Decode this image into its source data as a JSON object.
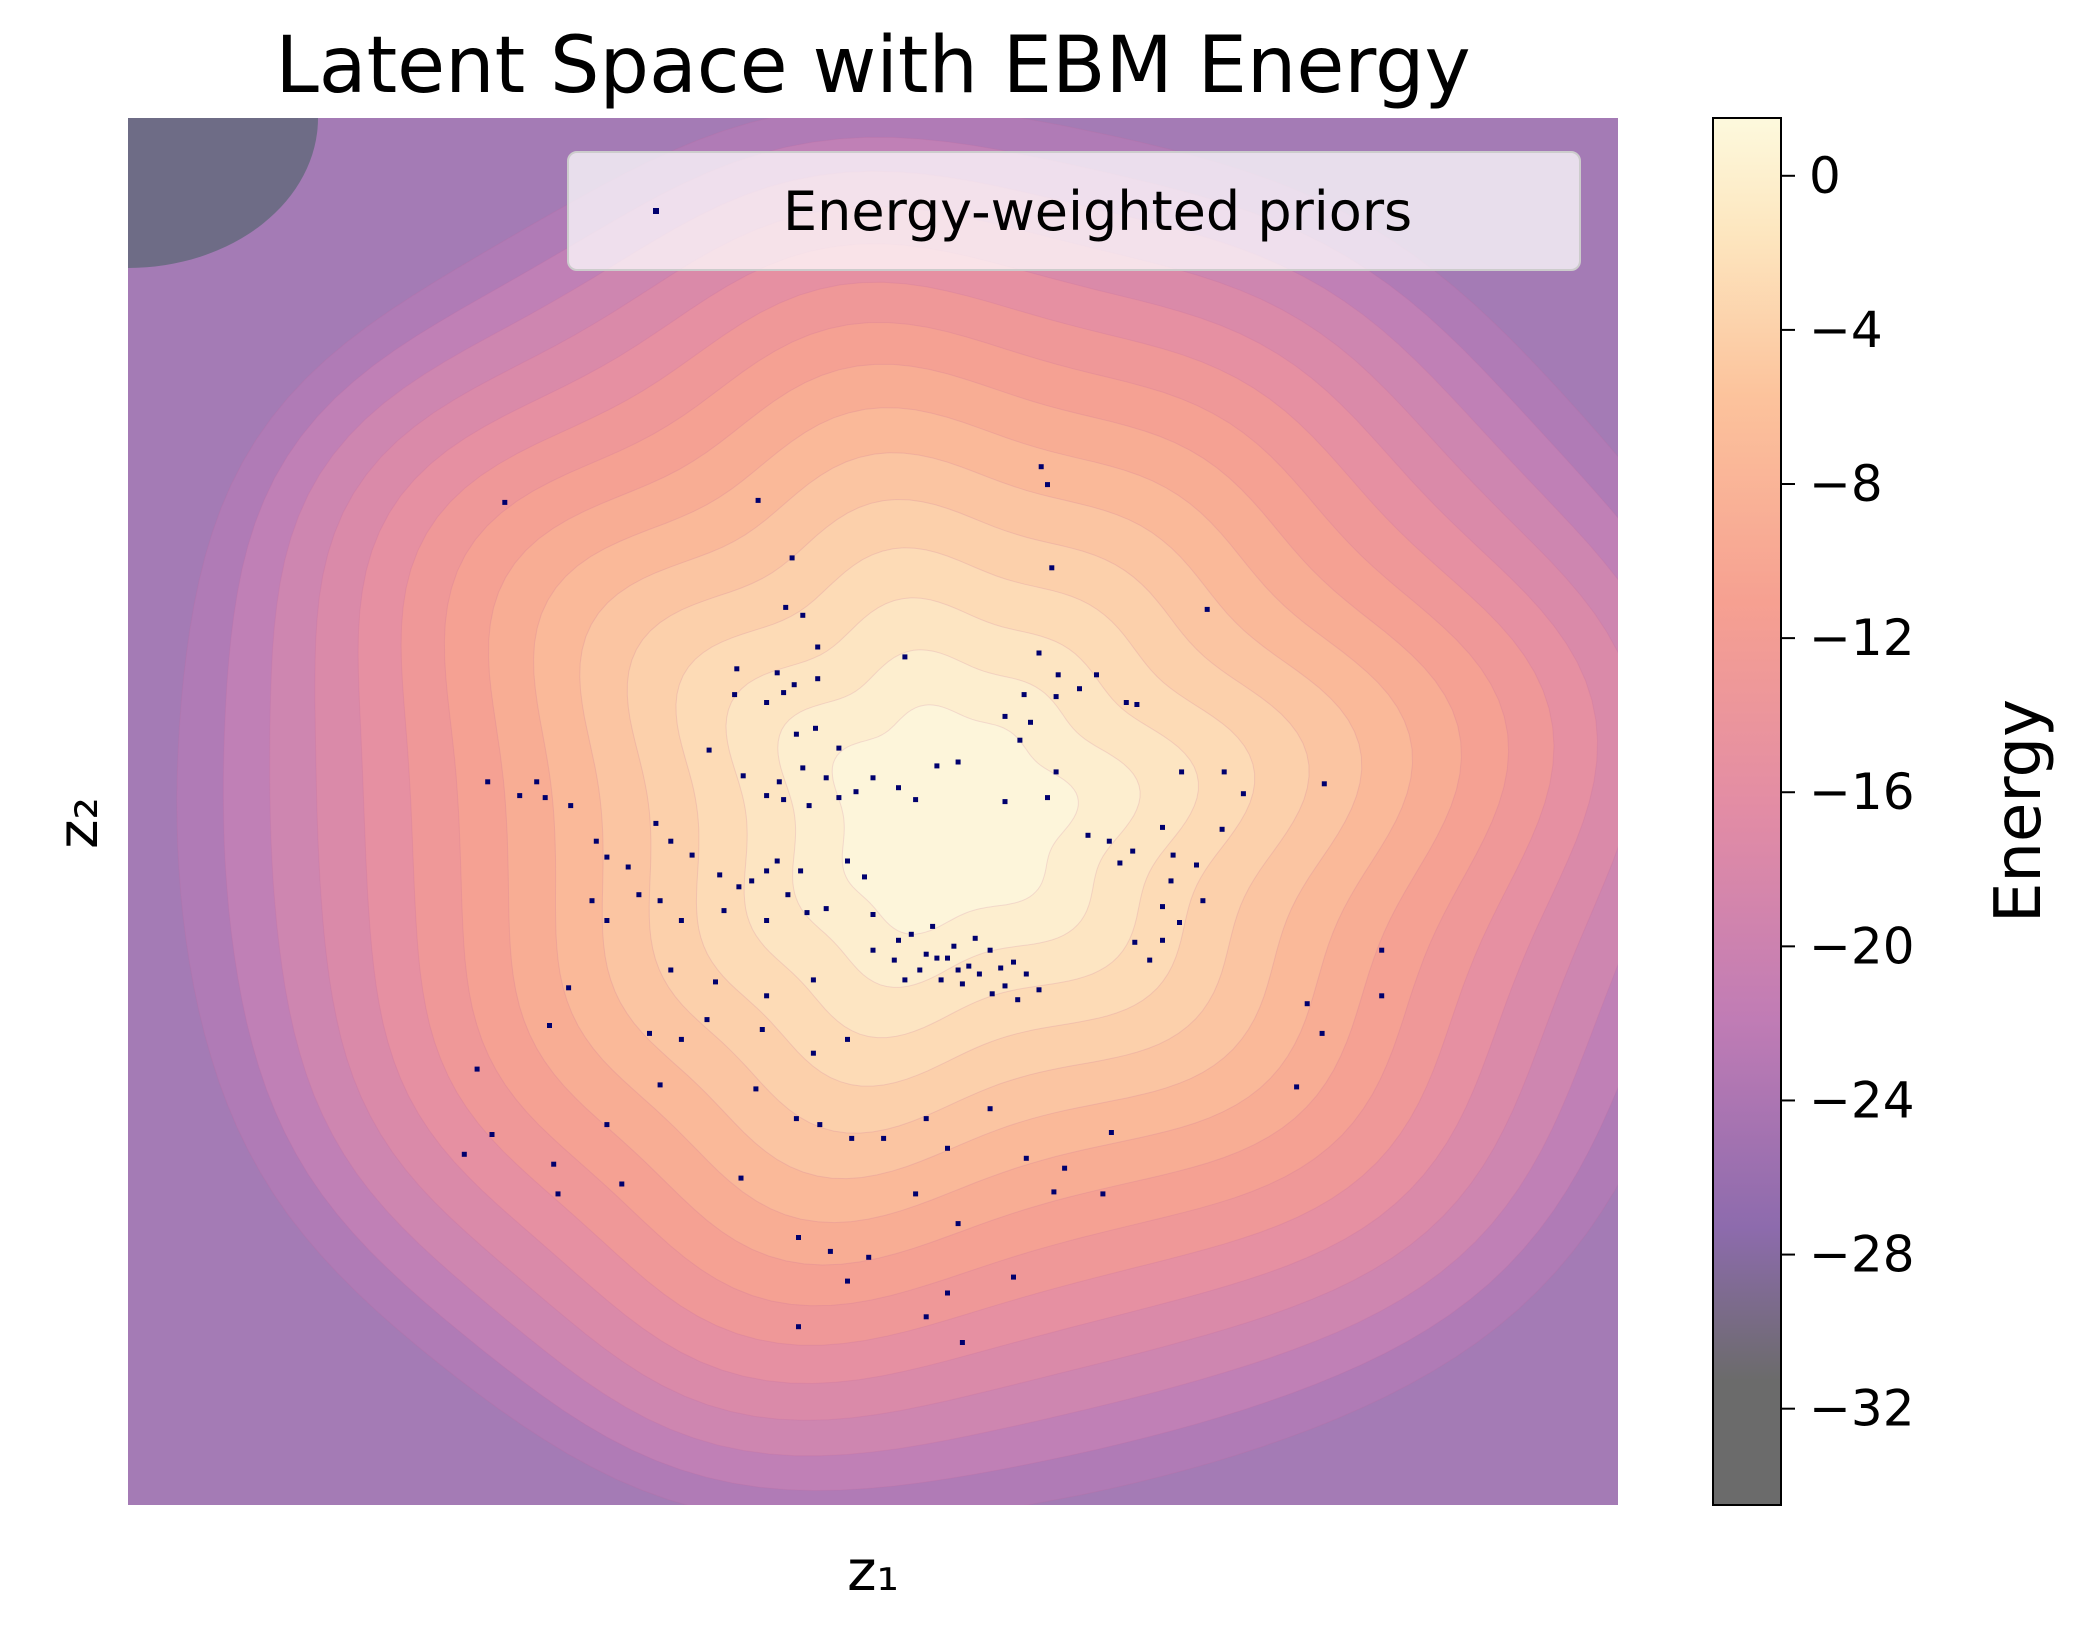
{
  "chart_data": {
    "type": "scatter",
    "title": "Latent Space with EBM Energy",
    "xlabel": "z₁",
    "ylabel": "z₂",
    "xlim": [
      -3.5,
      3.5
    ],
    "ylim": [
      -3.5,
      3.5
    ],
    "x_ticks_shown": false,
    "y_ticks_shown": false,
    "grid": false,
    "legend": {
      "position": "upper right",
      "entries": [
        "Energy-weighted priors"
      ]
    },
    "background": {
      "type": "filled-contour",
      "description_colormap": "magma",
      "alpha": 0.6,
      "colorbar": {
        "label": "Energy",
        "range": [
          -34.5,
          1.5
        ],
        "ticks": [
          0,
          -4,
          -8,
          -12,
          -16,
          -20,
          -24,
          -28,
          -32
        ],
        "tick_labels": [
          "0",
          "−4",
          "−8",
          "−12",
          "−16",
          "−20",
          "−24",
          "−28",
          "−32"
        ]
      }
    },
    "series": [
      {
        "name": "Energy-weighted priors",
        "color": "#00006e",
        "marker": "point",
        "points": [
          [
            -1.73,
            1.56
          ],
          [
            -0.54,
            1.57
          ],
          [
            0.79,
            1.74
          ],
          [
            0.82,
            1.65
          ],
          [
            0.84,
            1.23
          ],
          [
            -0.38,
            1.28
          ],
          [
            -0.41,
            1.03
          ],
          [
            -0.33,
            0.99
          ],
          [
            1.57,
            1.02
          ],
          [
            -0.26,
            0.83
          ],
          [
            0.15,
            0.78
          ],
          [
            -0.64,
            0.72
          ],
          [
            -0.45,
            0.7
          ],
          [
            -0.37,
            0.64
          ],
          [
            -0.42,
            0.6
          ],
          [
            -0.26,
            0.67
          ],
          [
            0.78,
            0.8
          ],
          [
            0.87,
            0.69
          ],
          [
            1.05,
            0.69
          ],
          [
            -0.65,
            0.59
          ],
          [
            -0.5,
            0.55
          ],
          [
            0.71,
            0.59
          ],
          [
            0.86,
            0.58
          ],
          [
            0.97,
            0.62
          ],
          [
            1.19,
            0.55
          ],
          [
            1.24,
            0.54
          ],
          [
            -0.77,
            0.31
          ],
          [
            -0.36,
            0.39
          ],
          [
            -0.27,
            0.42
          ],
          [
            -0.16,
            0.32
          ],
          [
            0.62,
            0.48
          ],
          [
            0.74,
            0.45
          ],
          [
            0.69,
            0.36
          ],
          [
            0.86,
            0.2
          ],
          [
            -0.61,
            0.18
          ],
          [
            -0.44,
            0.15
          ],
          [
            -0.33,
            0.22
          ],
          [
            -0.22,
            0.17
          ],
          [
            -0.16,
            0.07
          ],
          [
            -0.5,
            0.08
          ],
          [
            -0.42,
            0.06
          ],
          [
            -0.3,
            0.03
          ],
          [
            -0.08,
            0.1
          ],
          [
            0.0,
            0.17
          ],
          [
            0.12,
            0.12
          ],
          [
            0.2,
            0.06
          ],
          [
            0.3,
            0.23
          ],
          [
            0.4,
            0.25
          ],
          [
            0.62,
            0.05
          ],
          [
            0.82,
            0.07
          ],
          [
            1.45,
            0.2
          ],
          [
            1.65,
            0.2
          ],
          [
            1.74,
            0.09
          ],
          [
            2.12,
            0.14
          ],
          [
            -1.81,
            0.15
          ],
          [
            -1.66,
            0.08
          ],
          [
            -1.58,
            0.15
          ],
          [
            -1.54,
            0.07
          ],
          [
            -1.42,
            0.03
          ],
          [
            -1.3,
            -0.15
          ],
          [
            -1.25,
            -0.23
          ],
          [
            -1.15,
            -0.28
          ],
          [
            -1.02,
            -0.06
          ],
          [
            -0.95,
            -0.15
          ],
          [
            -0.85,
            -0.22
          ],
          [
            -0.72,
            -0.32
          ],
          [
            -0.63,
            -0.38
          ],
          [
            -0.57,
            -0.35
          ],
          [
            -0.5,
            -0.3
          ],
          [
            -0.45,
            -0.25
          ],
          [
            -0.4,
            -0.42
          ],
          [
            -0.34,
            -0.3
          ],
          [
            -0.31,
            -0.51
          ],
          [
            -0.22,
            -0.49
          ],
          [
            -0.12,
            -0.25
          ],
          [
            -0.04,
            -0.33
          ],
          [
            0.0,
            -0.52
          ],
          [
            -0.5,
            -0.55
          ],
          [
            -0.7,
            -0.5
          ],
          [
            -0.9,
            -0.55
          ],
          [
            -1.0,
            -0.45
          ],
          [
            -1.1,
            -0.42
          ],
          [
            -1.25,
            -0.55
          ],
          [
            -1.32,
            -0.45
          ],
          [
            1.01,
            -0.12
          ],
          [
            1.11,
            -0.15
          ],
          [
            1.16,
            -0.26
          ],
          [
            1.22,
            -0.2
          ],
          [
            1.36,
            -0.08
          ],
          [
            1.41,
            -0.22
          ],
          [
            1.4,
            -0.35
          ],
          [
            1.52,
            -0.27
          ],
          [
            1.64,
            -0.09
          ],
          [
            1.44,
            -0.56
          ],
          [
            1.36,
            -0.65
          ],
          [
            1.3,
            -0.75
          ],
          [
            1.23,
            -0.66
          ],
          [
            1.55,
            -0.45
          ],
          [
            1.36,
            -0.48
          ],
          [
            0.0,
            -0.7
          ],
          [
            0.12,
            -0.65
          ],
          [
            0.18,
            -0.62
          ],
          [
            0.25,
            -0.72
          ],
          [
            0.3,
            -0.74
          ],
          [
            0.38,
            -0.68
          ],
          [
            0.4,
            -0.8
          ],
          [
            0.45,
            -0.78
          ],
          [
            0.5,
            -0.82
          ],
          [
            0.55,
            -0.7
          ],
          [
            0.6,
            -0.79
          ],
          [
            0.62,
            -0.88
          ],
          [
            0.66,
            -0.76
          ],
          [
            0.72,
            -0.82
          ],
          [
            0.78,
            -0.9
          ],
          [
            0.22,
            -0.8
          ],
          [
            0.32,
            -0.85
          ],
          [
            0.28,
            -0.58
          ],
          [
            0.48,
            -0.64
          ],
          [
            0.56,
            -0.92
          ],
          [
            0.42,
            -0.87
          ],
          [
            0.35,
            -0.74
          ],
          [
            0.1,
            -0.75
          ],
          [
            0.15,
            -0.85
          ],
          [
            0.68,
            -0.95
          ],
          [
            -0.5,
            -0.93
          ],
          [
            -0.28,
            -0.85
          ],
          [
            -0.52,
            -1.1
          ],
          [
            -0.78,
            -1.05
          ],
          [
            -0.95,
            -0.8
          ],
          [
            -0.74,
            -0.86
          ],
          [
            2.39,
            -0.7
          ],
          [
            2.39,
            -0.93
          ],
          [
            2.04,
            -0.97
          ],
          [
            2.11,
            -1.12
          ],
          [
            1.99,
            -1.39
          ],
          [
            -1.86,
            -1.3
          ],
          [
            -1.79,
            -1.63
          ],
          [
            -1.52,
            -1.08
          ],
          [
            -1.43,
            -0.89
          ],
          [
            -1.05,
            -1.12
          ],
          [
            -0.9,
            -1.15
          ],
          [
            -0.55,
            -1.4
          ],
          [
            -0.28,
            -1.22
          ],
          [
            -0.12,
            -1.15
          ],
          [
            -0.36,
            -1.55
          ],
          [
            -0.25,
            -1.58
          ],
          [
            -0.1,
            -1.65
          ],
          [
            0.05,
            -1.65
          ],
          [
            0.25,
            -1.55
          ],
          [
            0.35,
            -1.7
          ],
          [
            0.55,
            -1.5
          ],
          [
            0.72,
            -1.75
          ],
          [
            0.9,
            -1.8
          ],
          [
            1.12,
            -1.62
          ],
          [
            1.08,
            -1.93
          ],
          [
            -1.0,
            -1.38
          ],
          [
            -1.25,
            -1.58
          ],
          [
            -1.5,
            -1.78
          ],
          [
            -1.18,
            -1.88
          ],
          [
            -1.48,
            -1.93
          ],
          [
            -0.62,
            -1.85
          ],
          [
            -0.35,
            -2.15
          ],
          [
            0.2,
            -1.93
          ],
          [
            -0.2,
            -2.22
          ],
          [
            0.4,
            -2.08
          ],
          [
            0.66,
            -2.35
          ],
          [
            0.85,
            -1.92
          ],
          [
            0.35,
            -2.43
          ],
          [
            -0.02,
            -2.25
          ],
          [
            -0.12,
            -2.37
          ],
          [
            0.25,
            -2.55
          ],
          [
            0.42,
            -2.68
          ],
          [
            -0.35,
            -2.6
          ],
          [
            -1.92,
            -1.73
          ]
        ]
      }
    ]
  }
}
